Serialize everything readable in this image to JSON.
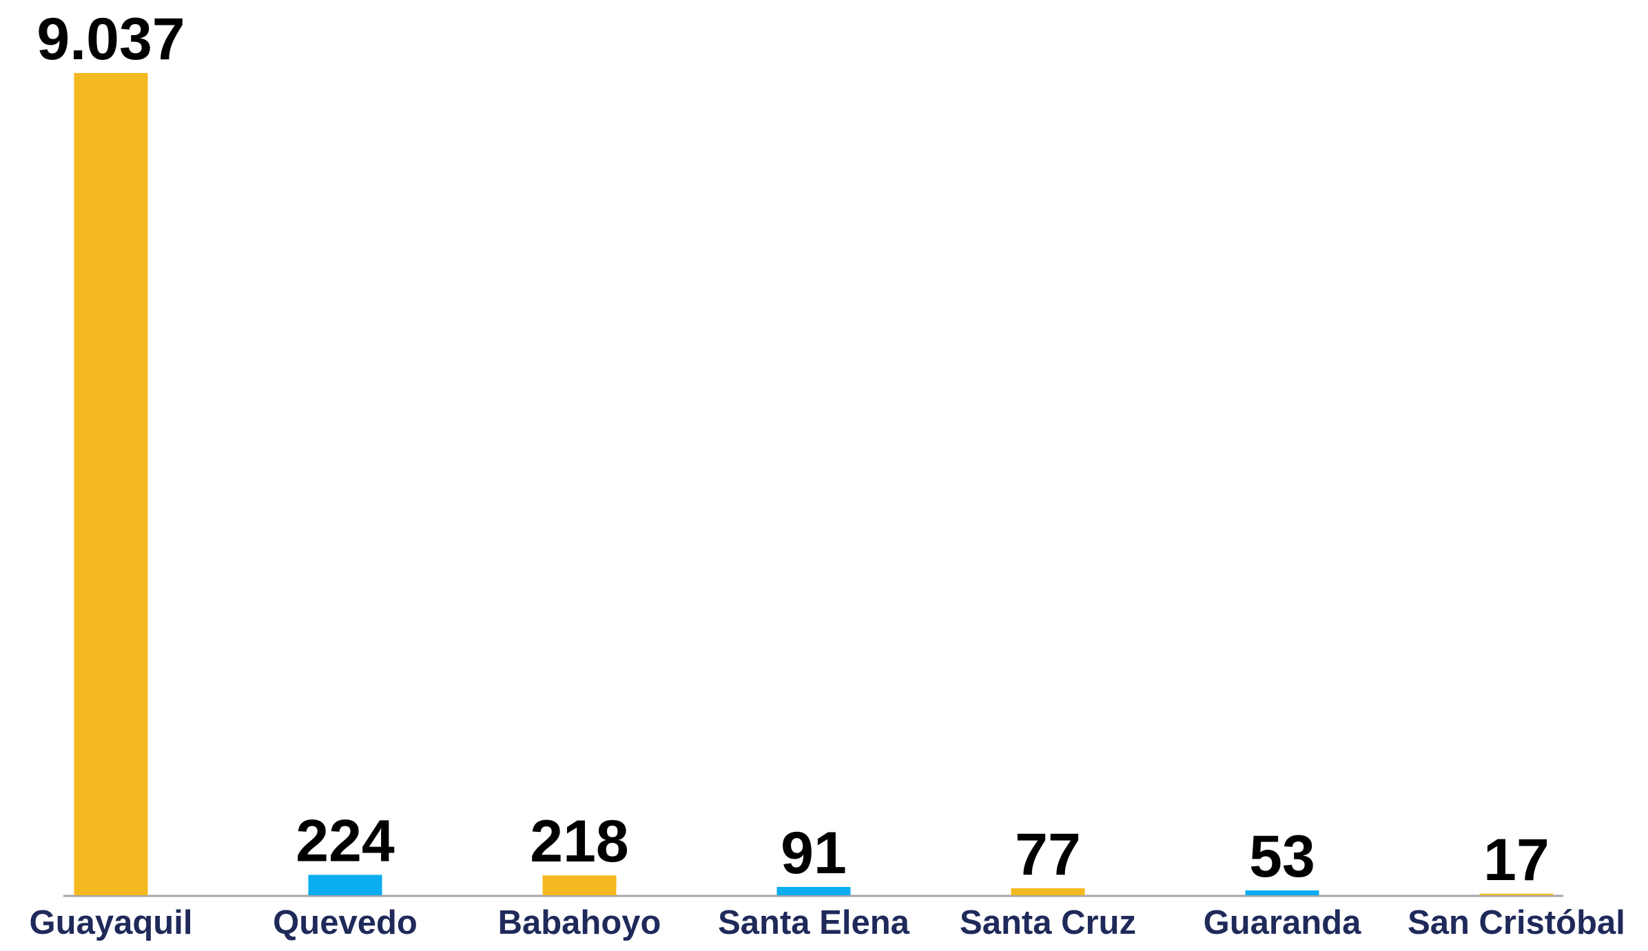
{
  "chart_data": {
    "type": "bar",
    "categories": [
      "Guayaquil",
      "Quevedo",
      "Babahoyo",
      "Santa Elena",
      "Santa Cruz",
      "Guaranda",
      "San Cristóbal"
    ],
    "values": [
      9037,
      224,
      218,
      91,
      77,
      53,
      17
    ],
    "value_labels": [
      "9.037",
      "224",
      "218",
      "91",
      "77",
      "53",
      "17"
    ],
    "colors": [
      "#f4b920",
      "#0aadef",
      "#f4b920",
      "#0aadef",
      "#f4b920",
      "#0aadef",
      "#f4b920"
    ]
  }
}
